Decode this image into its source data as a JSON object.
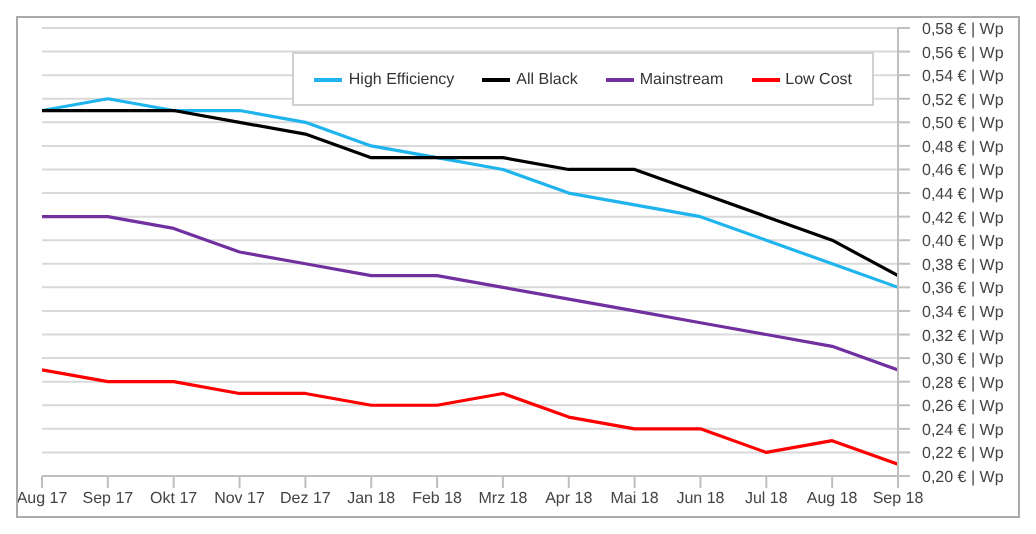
{
  "chart_data": {
    "type": "line",
    "categories": [
      "Aug 17",
      "Sep 17",
      "Okt 17",
      "Nov 17",
      "Dez 17",
      "Jan 18",
      "Feb 18",
      "Mrz 18",
      "Apr 18",
      "Mai 18",
      "Jun 18",
      "Jul 18",
      "Aug 18",
      "Sep 18"
    ],
    "series": [
      {
        "name": "High Efficiency",
        "color": "#1fb4ee",
        "values": [
          0.51,
          0.52,
          0.51,
          0.51,
          0.5,
          0.48,
          0.47,
          0.46,
          0.44,
          0.43,
          0.42,
          0.4,
          0.38,
          0.36
        ]
      },
      {
        "name": "All Black",
        "color": "#000000",
        "values": [
          0.51,
          0.51,
          0.51,
          0.5,
          0.49,
          0.47,
          0.47,
          0.47,
          0.46,
          0.46,
          0.44,
          0.42,
          0.4,
          0.37
        ]
      },
      {
        "name": "Mainstream",
        "color": "#7030a0",
        "values": [
          0.42,
          0.42,
          0.41,
          0.39,
          0.38,
          0.37,
          0.37,
          0.36,
          0.35,
          0.34,
          0.33,
          0.32,
          0.31,
          0.29
        ]
      },
      {
        "name": "Low Cost",
        "color": "#ff0000",
        "values": [
          0.29,
          0.28,
          0.28,
          0.27,
          0.27,
          0.26,
          0.26,
          0.27,
          0.25,
          0.24,
          0.24,
          0.22,
          0.23,
          0.21
        ]
      }
    ],
    "ylim": [
      0.2,
      0.58
    ],
    "yticks": [
      {
        "value": 0.2,
        "label": "0,20 € | Wp"
      },
      {
        "value": 0.22,
        "label": "0,22 € | Wp"
      },
      {
        "value": 0.24,
        "label": "0,24 € | Wp"
      },
      {
        "value": 0.26,
        "label": "0,26 € | Wp"
      },
      {
        "value": 0.28,
        "label": "0,28 € | Wp"
      },
      {
        "value": 0.3,
        "label": "0,30 € | Wp"
      },
      {
        "value": 0.32,
        "label": "0,32 € | Wp"
      },
      {
        "value": 0.34,
        "label": "0,34 € | Wp"
      },
      {
        "value": 0.36,
        "label": "0,36 € | Wp"
      },
      {
        "value": 0.38,
        "label": "0,38 € | Wp"
      },
      {
        "value": 0.4,
        "label": "0,40 € | Wp"
      },
      {
        "value": 0.42,
        "label": "0,42 € | Wp"
      },
      {
        "value": 0.44,
        "label": "0,44 € | Wp"
      },
      {
        "value": 0.46,
        "label": "0,46 € | Wp"
      },
      {
        "value": 0.48,
        "label": "0,48 € | Wp"
      },
      {
        "value": 0.5,
        "label": "0,50 € | Wp"
      },
      {
        "value": 0.52,
        "label": "0,52 € | Wp"
      },
      {
        "value": 0.54,
        "label": "0,54 € | Wp"
      },
      {
        "value": 0.56,
        "label": "0,56 € | Wp"
      },
      {
        "value": 0.58,
        "label": "0,58 € | Wp"
      }
    ],
    "grid": "y",
    "legend": "top right",
    "marker": "none",
    "line_style": "solid"
  }
}
